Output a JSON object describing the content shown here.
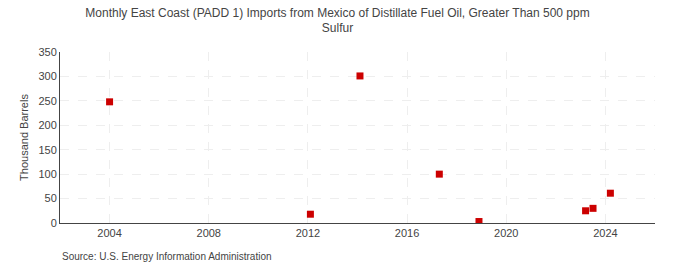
{
  "chart_data": {
    "type": "scatter",
    "title": "Monthly East Coast (PADD 1) Imports from Mexico of Distillate Fuel Oil, Greater Than 500 ppm\nSulfur",
    "ylabel": "Thousand Barrels",
    "source": "Source: U.S. Energy Information Administration",
    "x": [
      2004.0,
      2014.1,
      2012.1,
      2017.3,
      2018.9,
      2023.2,
      2023.5,
      2024.2
    ],
    "values": [
      248,
      301,
      18,
      100,
      3,
      25,
      30,
      61
    ],
    "color": "#cc0000",
    "marker": "square",
    "xlim": [
      2002,
      2026
    ],
    "ylim": [
      0,
      350
    ],
    "xticks": [
      2004,
      2008,
      2012,
      2016,
      2020,
      2024
    ],
    "yticks": [
      0,
      50,
      100,
      150,
      200,
      250,
      300,
      350
    ],
    "grid": true
  }
}
